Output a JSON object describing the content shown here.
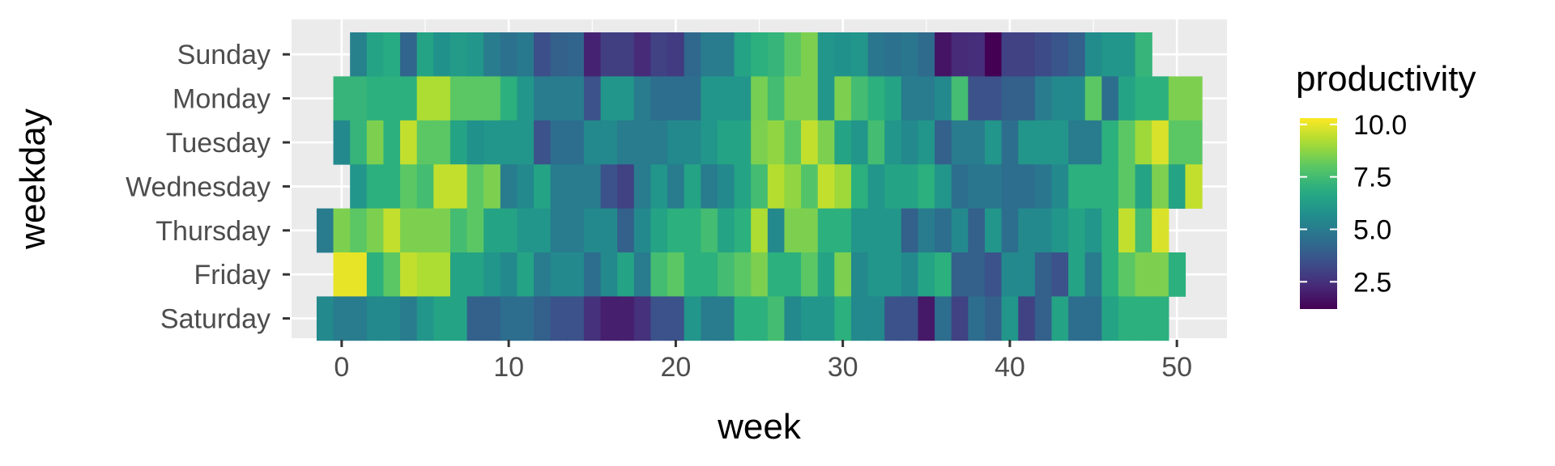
{
  "chart_data": {
    "type": "heatmap",
    "title": "",
    "xlabel": "week",
    "ylabel": "weekday",
    "x_ticks": [
      0,
      10,
      20,
      30,
      40,
      50
    ],
    "xlim": [
      -3,
      53
    ],
    "y_categories": [
      "Sunday",
      "Monday",
      "Tuesday",
      "Wednesday",
      "Thursday",
      "Friday",
      "Saturday"
    ],
    "grid": true,
    "colormap": "viridis",
    "legend": {
      "title": "productivity",
      "placement": "right",
      "range": [
        1.2,
        10.3
      ],
      "ticks": [
        2.5,
        5.0,
        7.5,
        10.0
      ],
      "tick_labels": [
        "10.0",
        "7.5",
        "5.0",
        "2.5"
      ]
    },
    "rows": [
      {
        "weekday": "Sunday",
        "start_week": 1,
        "values": [
          5.2,
          6.5,
          6.8,
          4.2,
          6.5,
          5.8,
          6.2,
          6.0,
          5.0,
          4.6,
          4.9,
          3.4,
          4.0,
          4.2,
          2.1,
          2.9,
          2.9,
          2.3,
          3.0,
          2.8,
          4.3,
          5.0,
          5.0,
          6.5,
          7.0,
          7.2,
          8.0,
          8.5,
          6.0,
          5.8,
          6.0,
          4.8,
          4.6,
          4.8,
          4.4,
          1.7,
          2.3,
          2.4,
          1.2,
          3.0,
          3.0,
          3.3,
          3.6,
          4.0,
          5.6,
          6.0,
          6.0,
          7.2
        ]
      },
      {
        "weekday": "Monday",
        "start_week": 0,
        "values": [
          7.2,
          7.2,
          7.0,
          7.0,
          7.0,
          9.2,
          9.2,
          8.0,
          8.0,
          8.0,
          7.0,
          6.0,
          5.0,
          5.0,
          5.0,
          3.5,
          6.0,
          6.0,
          5.0,
          4.5,
          4.5,
          4.5,
          6.0,
          6.0,
          6.0,
          8.4,
          7.5,
          8.5,
          8.5,
          6.0,
          8.5,
          7.5,
          7.0,
          6.5,
          5.0,
          5.0,
          5.5,
          7.5,
          3.5,
          3.5,
          4.0,
          4.0,
          5.0,
          5.5,
          5.5,
          8.0,
          4.5,
          6.5,
          7.0,
          7.0,
          8.5,
          8.5
        ]
      },
      {
        "weekday": "Tuesday",
        "start_week": 0,
        "values": [
          5.5,
          7.2,
          8.5,
          7.0,
          9.5,
          8.0,
          8.0,
          6.5,
          5.8,
          6.0,
          6.0,
          6.0,
          3.5,
          4.5,
          4.5,
          5.5,
          5.5,
          5.0,
          5.0,
          5.0,
          5.5,
          5.5,
          6.0,
          6.5,
          6.5,
          8.5,
          8.8,
          8.0,
          9.5,
          8.5,
          6.5,
          6.0,
          7.5,
          6.0,
          5.5,
          6.0,
          4.0,
          5.0,
          5.0,
          6.0,
          4.5,
          6.0,
          6.0,
          6.0,
          5.0,
          5.0,
          7.0,
          8.0,
          9.0,
          9.8,
          8.0,
          8.0
        ]
      },
      {
        "weekday": "Wednesday",
        "start_week": 1,
        "values": [
          6.0,
          7.0,
          7.0,
          8.0,
          7.5,
          9.5,
          9.5,
          8.0,
          8.5,
          5.0,
          5.5,
          6.5,
          5.0,
          5.0,
          5.0,
          3.5,
          3.0,
          5.0,
          6.0,
          5.0,
          6.5,
          5.0,
          5.5,
          6.5,
          7.5,
          9.3,
          8.8,
          7.8,
          9.5,
          9.0,
          7.0,
          6.0,
          6.5,
          6.5,
          7.0,
          6.0,
          4.5,
          4.8,
          4.8,
          4.5,
          4.5,
          4.8,
          5.5,
          7.0,
          7.0,
          7.0,
          8.0,
          6.5,
          8.5,
          6.5,
          9.5
        ]
      },
      {
        "weekday": "Thursday",
        "start_week": -1,
        "values": [
          5.0,
          8.5,
          8.0,
          8.5,
          9.5,
          8.5,
          8.5,
          8.5,
          7.5,
          8.0,
          6.5,
          6.5,
          6.0,
          6.0,
          5.0,
          5.0,
          5.5,
          5.5,
          4.0,
          5.5,
          6.5,
          7.0,
          7.0,
          7.5,
          6.5,
          7.0,
          9.2,
          5.5,
          8.5,
          8.5,
          7.0,
          7.0,
          6.0,
          6.0,
          6.0,
          4.0,
          5.0,
          4.5,
          5.5,
          4.0,
          6.0,
          4.5,
          5.5,
          5.5,
          6.0,
          6.5,
          6.0,
          7.0,
          9.5,
          7.5,
          9.8
        ]
      },
      {
        "weekday": "Friday",
        "start_week": 0,
        "values": [
          10.0,
          10.0,
          7.0,
          8.0,
          9.5,
          9.2,
          9.2,
          6.5,
          6.5,
          6.0,
          5.5,
          6.5,
          5.0,
          5.5,
          5.5,
          4.5,
          5.5,
          6.5,
          5.0,
          7.5,
          8.0,
          7.0,
          7.0,
          7.5,
          8.0,
          8.5,
          7.0,
          7.0,
          8.0,
          6.5,
          8.5,
          5.5,
          6.0,
          6.0,
          5.5,
          6.5,
          7.0,
          4.0,
          4.0,
          3.5,
          5.5,
          5.5,
          4.0,
          3.5,
          6.5,
          5.0,
          7.0,
          8.0,
          8.5,
          8.5,
          7.0
        ]
      },
      {
        "weekday": "Saturday",
        "start_week": -1,
        "values": [
          5.5,
          5.0,
          5.0,
          5.5,
          5.5,
          5.0,
          6.0,
          6.5,
          6.5,
          4.0,
          4.0,
          4.5,
          4.5,
          4.0,
          3.5,
          3.5,
          2.5,
          2.0,
          2.0,
          2.5,
          3.5,
          3.5,
          6.0,
          5.0,
          5.0,
          7.0,
          7.0,
          7.5,
          5.5,
          6.0,
          6.0,
          7.0,
          5.5,
          5.5,
          3.5,
          3.5,
          1.8,
          4.5,
          3.0,
          4.5,
          4.0,
          6.0,
          3.0,
          4.0,
          6.5,
          4.5,
          4.5,
          6.5,
          7.0,
          7.0,
          7.0
        ]
      }
    ]
  }
}
